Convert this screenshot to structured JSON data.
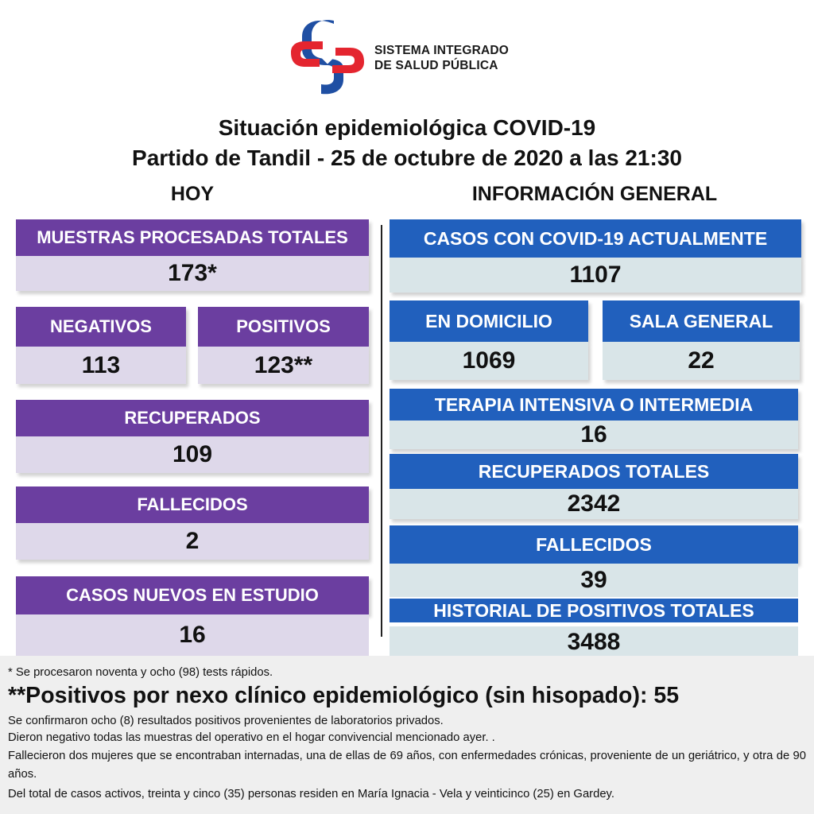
{
  "header": {
    "logo_line1": "SISTEMA INTEGRADO",
    "logo_line2": "DE SALUD PÚBLICA",
    "title_line1": "Situación epidemiológica COVID-19",
    "title_line2": "Partido de Tandil - 25 de octubre de 2020 a las 21:30"
  },
  "colors": {
    "purple_header": "#6b3ea0",
    "purple_value_bg": "#ded8ea",
    "blue_header": "#2160bd",
    "blue_value_bg": "#d9e5e8",
    "logo_red": "#e4252f",
    "logo_blue": "#1f4fa3"
  },
  "hoy": {
    "section_label": "HOY",
    "muestras": {
      "label": "MUESTRAS PROCESADAS TOTALES",
      "value": "173*"
    },
    "negativos": {
      "label": "NEGATIVOS",
      "value": "113"
    },
    "positivos": {
      "label": "POSITIVOS",
      "value": "123**"
    },
    "recuperados": {
      "label": "RECUPERADOS",
      "value": "109"
    },
    "fallecidos": {
      "label": "FALLECIDOS",
      "value": "2"
    },
    "casos_nuevos": {
      "label": "CASOS NUEVOS EN ESTUDIO",
      "value": "16"
    }
  },
  "general": {
    "section_label": "INFORMACIÓN GENERAL",
    "casos_actuales": {
      "label": "CASOS CON COVID-19 ACTUALMENTE",
      "value": "1107"
    },
    "domicilio": {
      "label": "EN DOMICILIO",
      "value": "1069"
    },
    "sala_general": {
      "label": "SALA GENERAL",
      "value": "22"
    },
    "terapia": {
      "label": "TERAPIA INTENSIVA O INTERMEDIA",
      "value": "16"
    },
    "recuperados_totales": {
      "label": "RECUPERADOS TOTALES",
      "value": "2342"
    },
    "fallecidos": {
      "label": "FALLECIDOS",
      "value": "39"
    },
    "historial": {
      "label": "HISTORIAL DE POSITIVOS TOTALES",
      "value": "3488"
    }
  },
  "notes": {
    "note1": "* Se procesaron noventa y ocho  (98) tests rápidos.",
    "note2": "**Positivos por nexo clínico epidemiológico (sin hisopado): 55",
    "note3": "Se confirmaron ocho (8) resultados positivos provenientes de laboratorios privados.",
    "note4": "Dieron negativo todas las muestras del operativo en el hogar convivencial mencionado ayer. .",
    "note5": "Fallecieron dos mujeres que se encontraban internadas, una de ellas de 69 años, con enfermedades crónicas, proveniente de un geriátrico, y otra de 90 años.",
    "note6": "Del total de casos activos, treinta y cinco (35) personas residen en María Ignacia - Vela y veinticinco  (25) en Gardey."
  }
}
